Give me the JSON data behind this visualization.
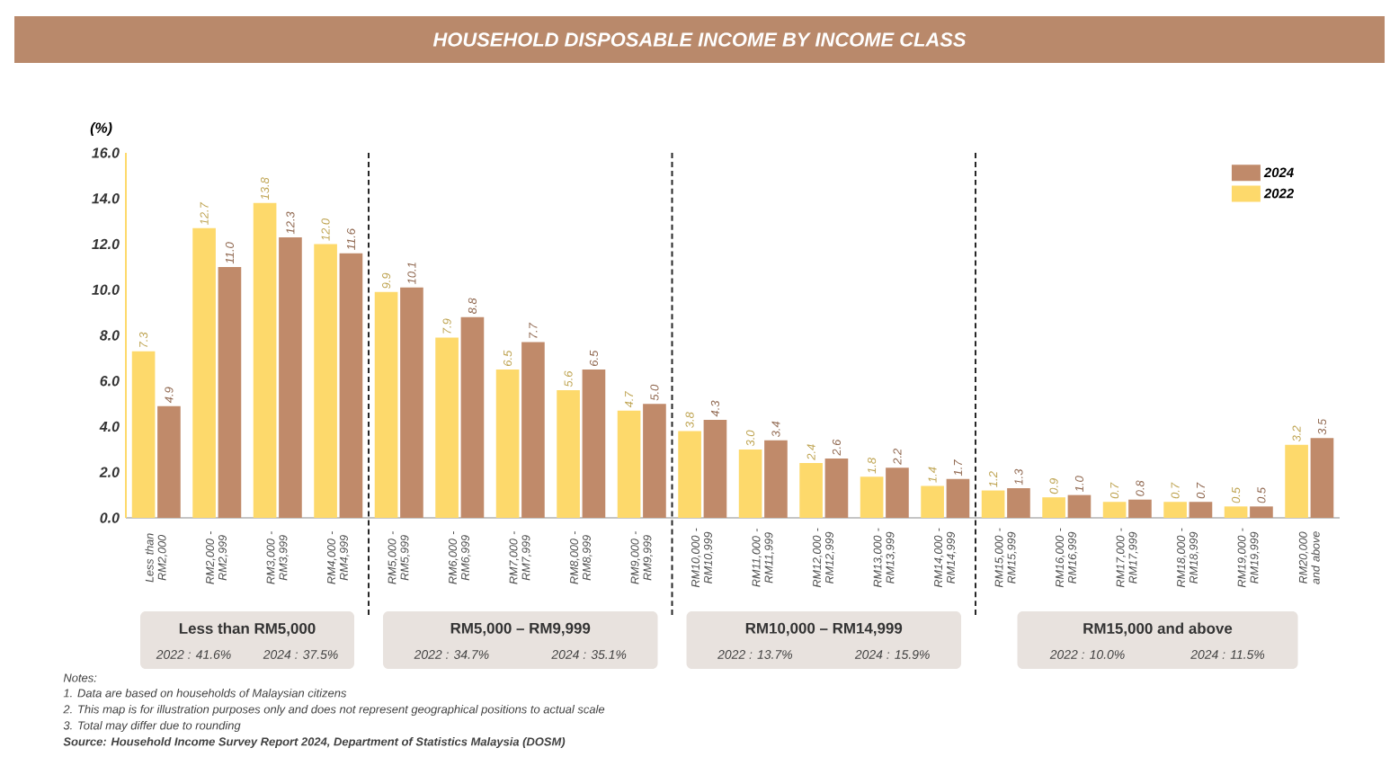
{
  "chart_data": {
    "type": "bar",
    "title": "HOUSEHOLD DISPOSABLE INCOME BY INCOME CLASS",
    "ylabel": "(%)",
    "categories": [
      "Less than RM2,000",
      "RM2,000 - RM2,999",
      "RM3,000 - RM3,999",
      "RM4,000 - RM4,999",
      "RM5,000 - RM5,999",
      "RM6,000 - RM6,999",
      "RM7,000 - RM7,999",
      "RM8,000 - RM8,999",
      "RM9,000 - RM9,999",
      "RM10,000 - RM10,999",
      "RM11,000 - RM11,999",
      "RM12,000 - RM12,999",
      "RM13,000 - RM13,999",
      "RM14,000 - RM14,999",
      "RM15,000 - RM15,999",
      "RM16,000 - RM16,999",
      "RM17,000 - RM17,999",
      "RM18,000 - RM18,999",
      "RM19,000 - RM19,999",
      "RM20,000 and above"
    ],
    "series": [
      {
        "name": "2022",
        "color": "#fdd96b",
        "values": [
          7.3,
          12.7,
          13.8,
          12.0,
          9.9,
          7.9,
          6.5,
          5.6,
          4.7,
          3.8,
          3.0,
          2.4,
          1.8,
          1.4,
          1.2,
          0.9,
          0.7,
          0.7,
          0.5,
          3.2
        ],
        "value_labels": [
          "7.3",
          "12.7",
          "13.8",
          "12.0",
          "9.9",
          "7.9",
          "6.5",
          "5.6",
          "4.7",
          "3.8",
          "3.0",
          "2.4",
          "1.8",
          "1.4",
          "1.2",
          "0.9",
          "0.7",
          "0.7",
          "0.5",
          "3.2"
        ]
      },
      {
        "name": "2024",
        "color": "#c08a6a",
        "values": [
          4.9,
          11.0,
          12.3,
          11.6,
          10.1,
          8.8,
          7.7,
          6.5,
          5.0,
          4.3,
          3.4,
          2.6,
          2.2,
          1.7,
          1.3,
          1.0,
          0.8,
          0.7,
          0.5,
          3.5
        ],
        "value_labels": [
          "4.9",
          "11.0",
          "12.3",
          "11.6",
          "10.1",
          "8.8",
          "7.7",
          "6.5",
          "5.0",
          "4.3",
          "3.4",
          "2.6",
          "2.2",
          "1.7",
          "1.3",
          "1.0",
          "0.8",
          "0.7",
          "0.5",
          "3.5"
        ]
      }
    ],
    "ylim": [
      0,
      16
    ],
    "yticks": [
      {
        "value": 0,
        "label": "0.0"
      },
      {
        "value": 2,
        "label": "2.0"
      },
      {
        "value": 4,
        "label": "4.0"
      },
      {
        "value": 6,
        "label": "6.0"
      },
      {
        "value": 8,
        "label": "8.0"
      },
      {
        "value": 10,
        "label": "10.0"
      },
      {
        "value": 12,
        "label": "12.0"
      },
      {
        "value": 14,
        "label": "14.0"
      },
      {
        "value": 16,
        "label": "16.0"
      }
    ],
    "legend": "top right",
    "grid": false,
    "annotations": [
      "Less than RM5,000",
      "2022 : 41.6%",
      "2024 : 37.5%",
      "RM5,000 – RM9,999",
      "2022 : 34.7%",
      "2024 : 35.1%",
      "RM10,000 – RM14,999",
      "2022 : 13.7%",
      "2024 : 15.9%",
      "RM15,000 and above",
      "2022 : 10.0%",
      "2024 : 11.5%",
      "Notes:",
      "1. Data are based on households of Malaysian citizens",
      "2. This map is for illustration purposes only and does not represent geographical positions to actual scale",
      "3. Total may differ due to rounding",
      "Source: Household Income Survey Report 2024, Department of Statistics Malaysia (DOSM)"
    ]
  }
}
